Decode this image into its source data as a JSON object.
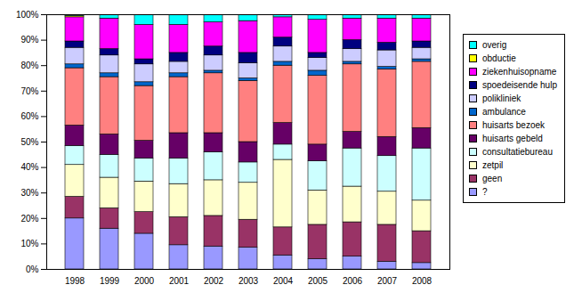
{
  "chart_data": {
    "type": "bar",
    "stacked": true,
    "grid": false,
    "legend": "right",
    "categories": [
      "1998",
      "1999",
      "2000",
      "2001",
      "2002",
      "2003",
      "2004",
      "2005",
      "2006",
      "2007",
      "2008"
    ],
    "ylim": [
      0,
      100
    ],
    "yticks": [
      {
        "value": 0,
        "label": "0%"
      },
      {
        "value": 10,
        "label": "10%"
      },
      {
        "value": 20,
        "label": "20%"
      },
      {
        "value": 30,
        "label": "30%"
      },
      {
        "value": 40,
        "label": "40%"
      },
      {
        "value": 50,
        "label": "50%"
      },
      {
        "value": 60,
        "label": "60%"
      },
      {
        "value": 70,
        "label": "70%"
      },
      {
        "value": 80,
        "label": "80%"
      },
      {
        "value": 90,
        "label": "90%"
      },
      {
        "value": 100,
        "label": "100%"
      }
    ],
    "series": [
      {
        "name": "?",
        "color": "#9999ff",
        "values": [
          20,
          16,
          14,
          9.5,
          9,
          8.5,
          5.5,
          4,
          5,
          3,
          2.5
        ]
      },
      {
        "name": "geen",
        "color": "#993366",
        "values": [
          8.5,
          8,
          8.5,
          11,
          12,
          11,
          11,
          13.5,
          13.5,
          14.5,
          12.5
        ]
      },
      {
        "name": "zetpil",
        "color": "#ffffcc",
        "values": [
          12.5,
          12,
          12,
          13,
          14,
          14.5,
          26.5,
          13.5,
          14,
          13,
          12
        ]
      },
      {
        "name": "consultatiebureau",
        "color": "#ccffff",
        "values": [
          7.5,
          9,
          9,
          10,
          11,
          8,
          6,
          11.5,
          15,
          14,
          20.5
        ]
      },
      {
        "name": "huisarts gebeld",
        "color": "#660066",
        "values": [
          8,
          8,
          7,
          10,
          7.5,
          8,
          8.5,
          6.5,
          6.5,
          7.5,
          8
        ]
      },
      {
        "name": "huisarts bezoek",
        "color": "#ff8080",
        "values": [
          22.5,
          22.5,
          21.5,
          22,
          23.5,
          24,
          22.5,
          27,
          26.5,
          26.5,
          26
        ]
      },
      {
        "name": "ambulance",
        "color": "#0066cc",
        "values": [
          1.5,
          1.5,
          1.5,
          1.5,
          1,
          1,
          1.5,
          2,
          1,
          1,
          1
        ]
      },
      {
        "name": "polikliniek",
        "color": "#ccccff",
        "values": [
          6.5,
          7,
          7,
          4.5,
          6,
          6,
          6,
          5,
          5,
          6.5,
          4.5
        ]
      },
      {
        "name": "spoedeisende hulp",
        "color": "#000080",
        "values": [
          2.5,
          2.5,
          2,
          3.5,
          3.5,
          4,
          3.5,
          2,
          3.5,
          3,
          2.5
        ]
      },
      {
        "name": "ziekenhuisopname",
        "color": "#ff00ff",
        "values": [
          9.5,
          12,
          13.5,
          11,
          9.5,
          12.5,
          8,
          13,
          8.5,
          9.5,
          9
        ]
      },
      {
        "name": "obductie",
        "color": "#ffff00",
        "values": [
          0.5,
          0,
          0,
          0,
          0,
          0,
          0,
          0,
          0,
          0,
          0
        ]
      },
      {
        "name": "overig",
        "color": "#00ffff",
        "values": [
          0.5,
          1.5,
          4,
          4,
          3,
          2.5,
          1,
          2,
          1.5,
          1.5,
          1.5
        ]
      }
    ]
  }
}
